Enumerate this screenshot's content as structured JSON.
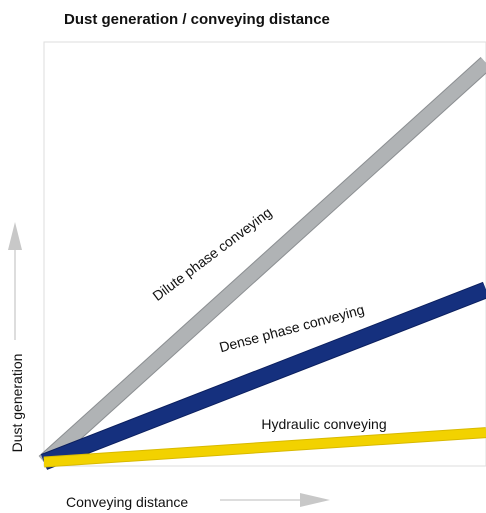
{
  "chart_data": {
    "type": "line",
    "title": "Dust generation / conveying distance",
    "xlabel": "Conveying distance",
    "ylabel": "Dust generation",
    "grid": false,
    "legend": "none",
    "series": [
      {
        "name": "Dilute phase conveying",
        "x": [
          0,
          1
        ],
        "y": [
          0,
          0.95
        ],
        "color": "#b0b3b5",
        "edge_color": "#8b8e91"
      },
      {
        "name": "Dense phase conveying",
        "x": [
          0,
          1
        ],
        "y": [
          0,
          0.41
        ],
        "color": "#15307e",
        "edge_color": "#0b1f5e"
      },
      {
        "name": "Hydraulic conveying",
        "x": [
          0,
          1
        ],
        "y": [
          0,
          0.07
        ],
        "color": "#f2d200",
        "edge_color": "#d8b900"
      }
    ]
  }
}
